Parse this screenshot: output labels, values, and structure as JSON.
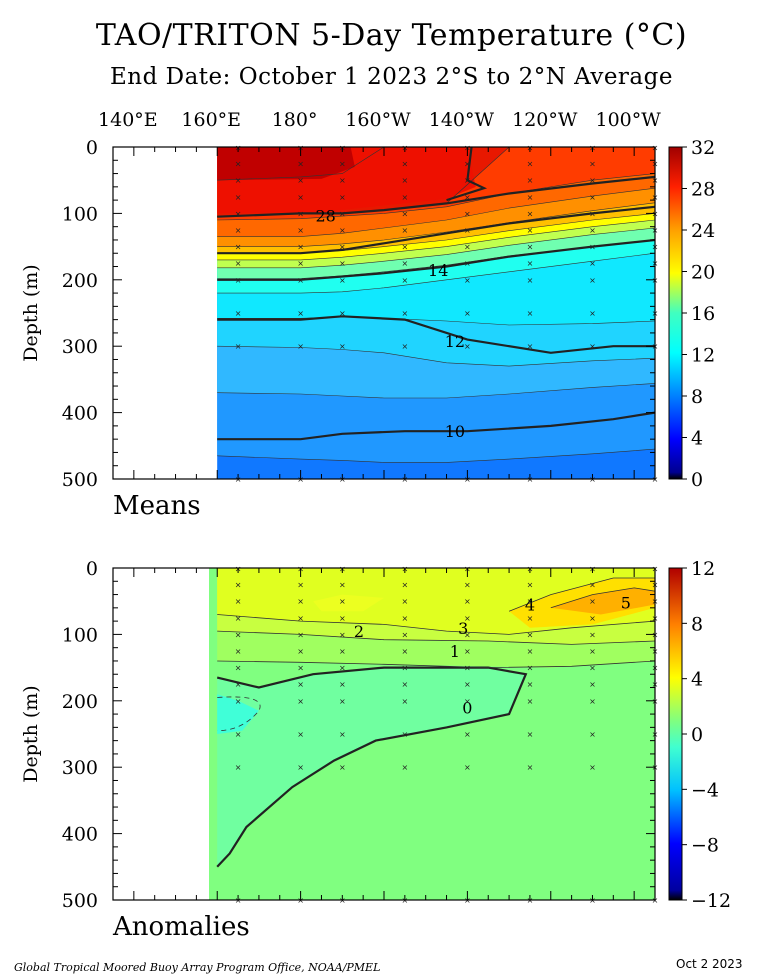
{
  "header": {
    "title": "TAO/TRITON 5-Day Temperature (°C)",
    "subtitle": "End Date: October 1 2023  2°S to 2°N Average"
  },
  "footer": {
    "credit": "Global Tropical Moored Buoy Array Program Office, NOAA/PMEL",
    "date": "Oct  2 2023"
  },
  "chart_data": [
    {
      "type": "heatmap",
      "panel_label": "Means",
      "xlabel": "",
      "ylabel": "Depth (m)",
      "x_tick_labels": [
        "140°E",
        "160°E",
        "180°",
        "160°W",
        "140°W",
        "120°W",
        "100°W"
      ],
      "x_tick_lon": [
        140,
        160,
        180,
        200,
        220,
        240,
        260
      ],
      "xlim": [
        135,
        265
      ],
      "data_xlim": [
        160,
        265
      ],
      "y_ticks": [
        0,
        100,
        200,
        300,
        400,
        500
      ],
      "ylim": [
        0,
        500
      ],
      "colorbar": {
        "ticks": [
          0,
          4,
          8,
          12,
          16,
          20,
          24,
          28,
          32
        ],
        "range": [
          0,
          32
        ]
      },
      "isotherms": [
        {
          "label": "28",
          "depth": [
            105,
            100,
            100,
            95,
            85,
            70,
            55,
            45
          ],
          "lon": [
            160,
            180,
            190,
            200,
            215,
            230,
            250,
            265
          ]
        },
        {
          "label": "20",
          "depth": [
            160,
            160,
            155,
            145,
            130,
            115,
            100,
            90
          ],
          "lon": [
            160,
            180,
            190,
            200,
            215,
            230,
            250,
            265
          ]
        },
        {
          "label": "14",
          "depth": [
            200,
            200,
            195,
            190,
            180,
            165,
            150,
            140
          ],
          "lon": [
            160,
            180,
            190,
            200,
            215,
            230,
            250,
            265
          ]
        },
        {
          "label": "12",
          "depth": [
            260,
            260,
            255,
            260,
            290,
            310,
            300,
            300
          ],
          "lon": [
            160,
            180,
            190,
            205,
            220,
            240,
            255,
            265
          ]
        },
        {
          "label": "10",
          "depth": [
            440,
            440,
            432,
            428,
            428,
            420,
            410,
            400
          ],
          "lon": [
            160,
            180,
            190,
            205,
            220,
            240,
            255,
            265
          ]
        }
      ],
      "contour_labels": [
        {
          "text": "28",
          "lon": 186,
          "depth": 103
        },
        {
          "text": "14",
          "lon": 213,
          "depth": 185
        },
        {
          "text": "12",
          "lon": 217,
          "depth": 292
        },
        {
          "text": "10",
          "lon": 217,
          "depth": 428
        }
      ],
      "sample_depths": [
        1,
        25,
        50,
        75,
        100,
        125,
        150,
        175,
        200,
        250,
        300,
        500
      ],
      "mooring_lon": [
        165,
        180,
        190,
        205,
        220,
        235,
        250,
        265
      ]
    },
    {
      "type": "heatmap",
      "panel_label": "Anomalies",
      "xlabel": "",
      "ylabel": "Depth (m)",
      "xlim": [
        135,
        265
      ],
      "data_xlim": [
        160,
        265
      ],
      "y_ticks": [
        0,
        100,
        200,
        300,
        400,
        500
      ],
      "ylim": [
        0,
        500
      ],
      "colorbar": {
        "ticks": [
          -12,
          -8,
          -4,
          0,
          4,
          8,
          12
        ],
        "range": [
          -12,
          12
        ]
      },
      "contour_labels": [
        {
          "text": "0",
          "lon": 220,
          "depth": 210
        },
        {
          "text": "1",
          "lon": 217,
          "depth": 125
        },
        {
          "text": "2",
          "lon": 194,
          "depth": 95
        },
        {
          "text": "3",
          "lon": 219,
          "depth": 90
        },
        {
          "text": "4",
          "lon": 235,
          "depth": 55
        },
        {
          "text": "5",
          "lon": 258,
          "depth": 52
        }
      ],
      "zero_line": {
        "lon": [
          160,
          163,
          167,
          178,
          188,
          198,
          215,
          230,
          234,
          225,
          200,
          183,
          170,
          160
        ],
        "depth": [
          450,
          430,
          390,
          330,
          290,
          260,
          240,
          220,
          160,
          150,
          150,
          160,
          180,
          165
        ]
      },
      "sample_depths": [
        1,
        25,
        50,
        75,
        100,
        125,
        150,
        175,
        200,
        250,
        300,
        500
      ],
      "mooring_lon": [
        165,
        180,
        190,
        205,
        220,
        235,
        250,
        265
      ]
    }
  ]
}
